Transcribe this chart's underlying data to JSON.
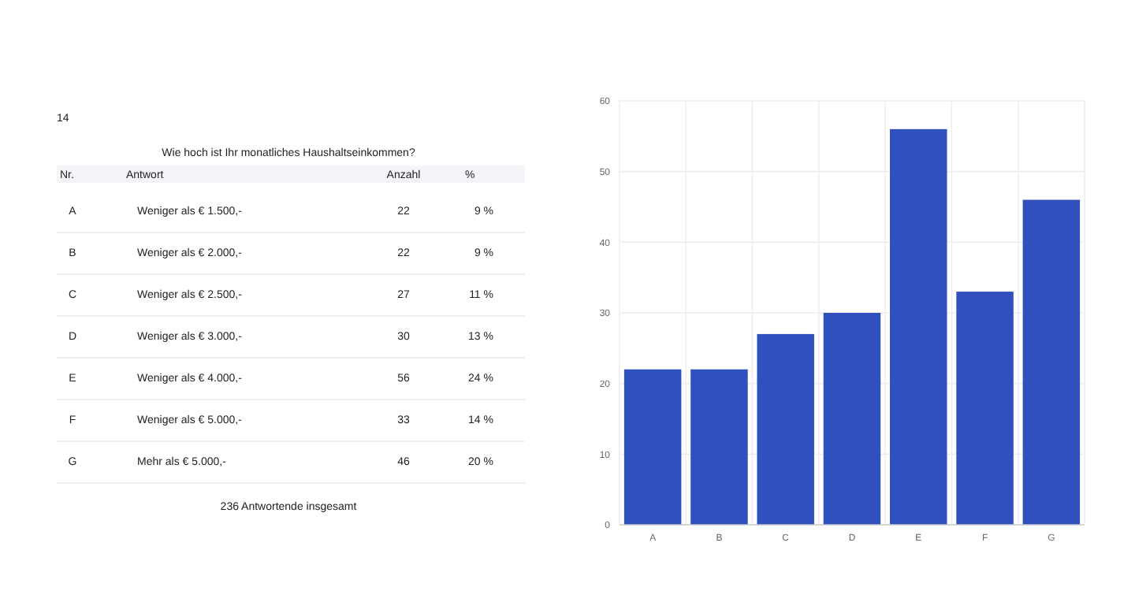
{
  "chart_data": [
    {
      "type": "other",
      "title": "Wie hoch ist Ihr monatliches Haushaltseinkommen?",
      "annotations": [
        "14",
        "Nr.",
        "Antwort",
        "Anzahl",
        "%",
        "A",
        "B",
        "C",
        "D",
        "E",
        "F",
        "G",
        "Weniger als € 1.500,-",
        "Weniger als € 2.000,-",
        "Weniger als € 2.500,-",
        "Weniger als € 3.000,-",
        "Weniger als € 4.000,-",
        "Weniger als € 5.000,-",
        "Mehr als € 5.000,-",
        "22",
        "22",
        "27",
        "30",
        "56",
        "33",
        "46",
        "9 %",
        "9 %",
        "11 %",
        "13 %",
        "24 %",
        "14 %",
        "20 %",
        "236 Antwortende insgesamt"
      ]
    },
    {
      "type": "bar",
      "categories": [
        "A",
        "B",
        "C",
        "D",
        "E",
        "F",
        "G"
      ],
      "values": [
        22,
        22,
        27,
        30,
        56,
        33,
        46
      ],
      "color": "#3050be",
      "ylim": [
        0,
        60
      ],
      "yticks": [
        0,
        10,
        20,
        30,
        40,
        50,
        60
      ],
      "grid": true
    }
  ]
}
